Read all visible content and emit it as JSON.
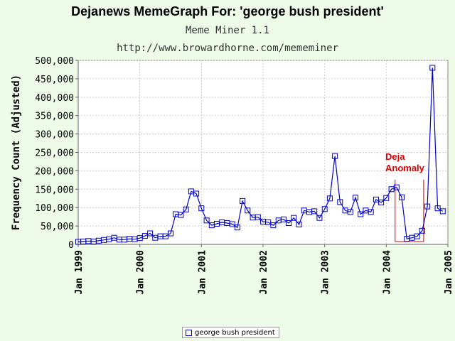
{
  "chart_data": {
    "type": "line",
    "title": "Dejanews MemeGraph For: 'george bush president'",
    "subtitle": [
      "Meme Miner 1.1",
      "http://www.browardhorne.com/mememiner"
    ],
    "ylabel": "Frequency Count (Adjusted)",
    "xlabel": "",
    "ylim": [
      0,
      500000
    ],
    "yticks": [
      {
        "value": 0,
        "label": "0"
      },
      {
        "value": 50000,
        "label": "50,000"
      },
      {
        "value": 100000,
        "label": "100,000"
      },
      {
        "value": 150000,
        "label": "150,000"
      },
      {
        "value": 200000,
        "label": "200,000"
      },
      {
        "value": 250000,
        "label": "250,000"
      },
      {
        "value": 300000,
        "label": "300,000"
      },
      {
        "value": 350000,
        "label": "350,000"
      },
      {
        "value": 400000,
        "label": "400,000"
      },
      {
        "value": 450000,
        "label": "450,000"
      },
      {
        "value": 500000,
        "label": "500,000"
      }
    ],
    "xlim": [
      "1999-01",
      "2005-01"
    ],
    "xticks": [
      {
        "value": "1999-01",
        "label": "Jan 1999"
      },
      {
        "value": "2000-01",
        "label": "Jan 2000"
      },
      {
        "value": "2001-01",
        "label": "Jan 2001"
      },
      {
        "value": "2002-01",
        "label": "Jan 2002"
      },
      {
        "value": "2003-01",
        "label": "Jan 2003"
      },
      {
        "value": "2004-01",
        "label": "Jan 2004"
      },
      {
        "value": "2005-01",
        "label": "Jan 2005"
      }
    ],
    "grid": true,
    "legend_position": "bottom",
    "series": [
      {
        "name": "george bush president",
        "color": "#0000cc",
        "x": [
          "1999-01",
          "1999-02",
          "1999-03",
          "1999-04",
          "1999-05",
          "1999-06",
          "1999-07",
          "1999-08",
          "1999-09",
          "1999-10",
          "1999-11",
          "1999-12",
          "2000-01",
          "2000-02",
          "2000-03",
          "2000-04",
          "2000-05",
          "2000-06",
          "2000-07",
          "2000-08",
          "2000-09",
          "2000-10",
          "2000-11",
          "2000-12",
          "2001-01",
          "2001-02",
          "2001-03",
          "2001-04",
          "2001-05",
          "2001-06",
          "2001-07",
          "2001-08",
          "2001-09",
          "2001-10",
          "2001-11",
          "2001-12",
          "2002-01",
          "2002-02",
          "2002-03",
          "2002-04",
          "2002-05",
          "2002-06",
          "2002-07",
          "2002-08",
          "2002-09",
          "2002-10",
          "2002-11",
          "2002-12",
          "2003-01",
          "2003-02",
          "2003-03",
          "2003-04",
          "2003-05",
          "2003-06",
          "2003-07",
          "2003-08",
          "2003-09",
          "2003-10",
          "2003-11",
          "2003-12",
          "2004-01",
          "2004-02",
          "2004-03",
          "2004-04",
          "2004-05",
          "2004-06",
          "2004-07",
          "2004-08",
          "2004-09",
          "2004-10",
          "2004-11",
          "2004-12"
        ],
        "values": [
          7000,
          8000,
          9000,
          8000,
          10000,
          12000,
          14000,
          18000,
          13000,
          13000,
          15000,
          14000,
          17000,
          23000,
          30000,
          18000,
          22000,
          22000,
          30000,
          82000,
          80000,
          95000,
          144000,
          138000,
          98000,
          65000,
          52000,
          56000,
          60000,
          58000,
          55000,
          46000,
          118000,
          92000,
          73000,
          74000,
          62000,
          60000,
          52000,
          65000,
          68000,
          58000,
          72000,
          54000,
          92000,
          88000,
          90000,
          72000,
          96000,
          125000,
          240000,
          115000,
          92000,
          88000,
          127000,
          82000,
          92000,
          88000,
          122000,
          114000,
          126000,
          150000,
          155000,
          128000,
          15000,
          18000,
          22000,
          37000,
          103000,
          480000,
          98000,
          90000
        ]
      }
    ],
    "annotations": [
      {
        "text": [
          "Deja",
          "Anomaly"
        ],
        "color": "#dd0000",
        "x_start": "2004-03",
        "x_end": "2004-08"
      }
    ]
  }
}
